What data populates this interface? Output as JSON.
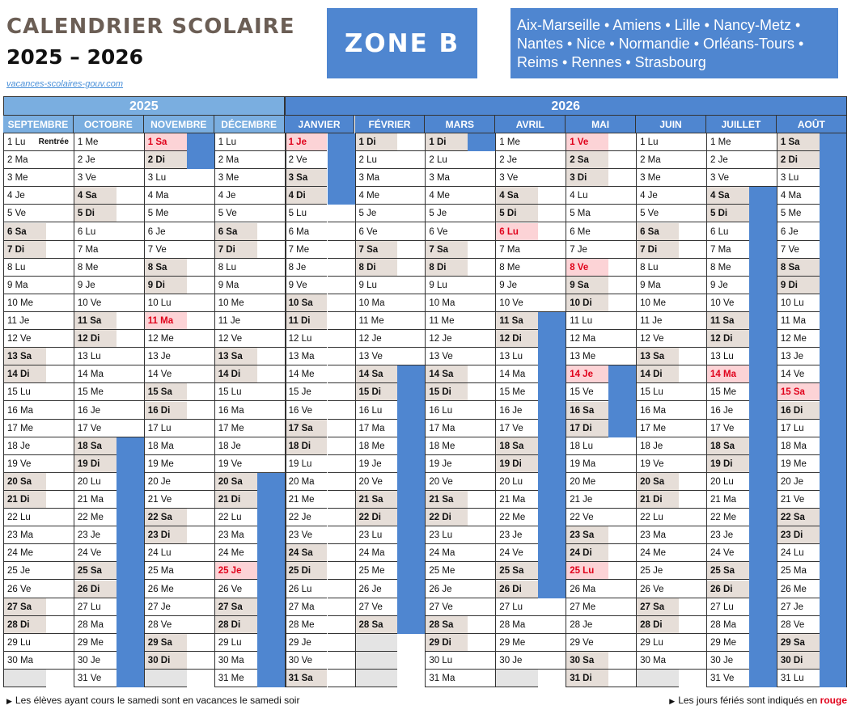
{
  "header": {
    "title": "CALENDRIER SCOLAIRE",
    "years": "2025 – 2026",
    "source": "vacances-scolaires-gouv.com",
    "zone": "ZONE B",
    "academies": "Aix-Marseille • Amiens • Lille • Nancy-Metz • Nantes • Nice • Normandie • Orléans-Tours • Reims • Rennes • Strasbourg"
  },
  "colors": {
    "vacation": "#4f86d0",
    "weekend": "#e6ded8",
    "holiday_bg": "#fcd3d6",
    "holiday_text": "#e0001a",
    "year_2025": "#7aaee0",
    "year_2026": "#4f86d0"
  },
  "calendar": {
    "year_labels": [
      "2025",
      "2026"
    ],
    "rentree_label": "Rentrée",
    "months": [
      {
        "name": "SEPTEMBRE",
        "first_dow": 1,
        "days": 30,
        "holidays": [],
        "vacations": []
      },
      {
        "name": "OCTOBRE",
        "first_dow": 3,
        "days": 31,
        "holidays": [],
        "vacations": [
          [
            18,
            31
          ]
        ]
      },
      {
        "name": "NOVEMBRE",
        "first_dow": 6,
        "days": 30,
        "holidays": [
          1,
          11
        ],
        "vacations": [
          [
            1,
            2
          ]
        ]
      },
      {
        "name": "DÉCEMBRE",
        "first_dow": 1,
        "days": 31,
        "holidays": [
          25
        ],
        "vacations": [
          [
            20,
            31
          ]
        ]
      },
      {
        "name": "JANVIER",
        "first_dow": 4,
        "days": 31,
        "holidays": [
          1
        ],
        "vacations": [
          [
            1,
            4
          ]
        ]
      },
      {
        "name": "FÉVRIER",
        "first_dow": 0,
        "days": 28,
        "holidays": [],
        "vacations": [
          [
            14,
            28
          ]
        ]
      },
      {
        "name": "MARS",
        "first_dow": 0,
        "days": 31,
        "holidays": [],
        "vacations": [
          [
            1,
            1
          ]
        ]
      },
      {
        "name": "AVRIL",
        "first_dow": 3,
        "days": 30,
        "holidays": [
          6
        ],
        "vacations": [
          [
            11,
            26
          ]
        ]
      },
      {
        "name": "MAI",
        "first_dow": 5,
        "days": 31,
        "holidays": [
          1,
          8,
          14,
          25
        ],
        "vacations": [
          [
            14,
            17
          ]
        ]
      },
      {
        "name": "JUIN",
        "first_dow": 1,
        "days": 30,
        "holidays": [],
        "vacations": []
      },
      {
        "name": "JUILLET",
        "first_dow": 3,
        "days": 31,
        "holidays": [
          14
        ],
        "vacations": [
          [
            4,
            31
          ]
        ]
      },
      {
        "name": "AOÛT",
        "first_dow": 6,
        "days": 31,
        "holidays": [
          15
        ],
        "vacations": [
          [
            1,
            31
          ]
        ]
      }
    ]
  },
  "footer": {
    "left": "Les élèves ayant cours le samedi sont en vacances le samedi soir",
    "right_text": "Les jours fériés sont indiqués en",
    "right_highlight": "rouge"
  }
}
